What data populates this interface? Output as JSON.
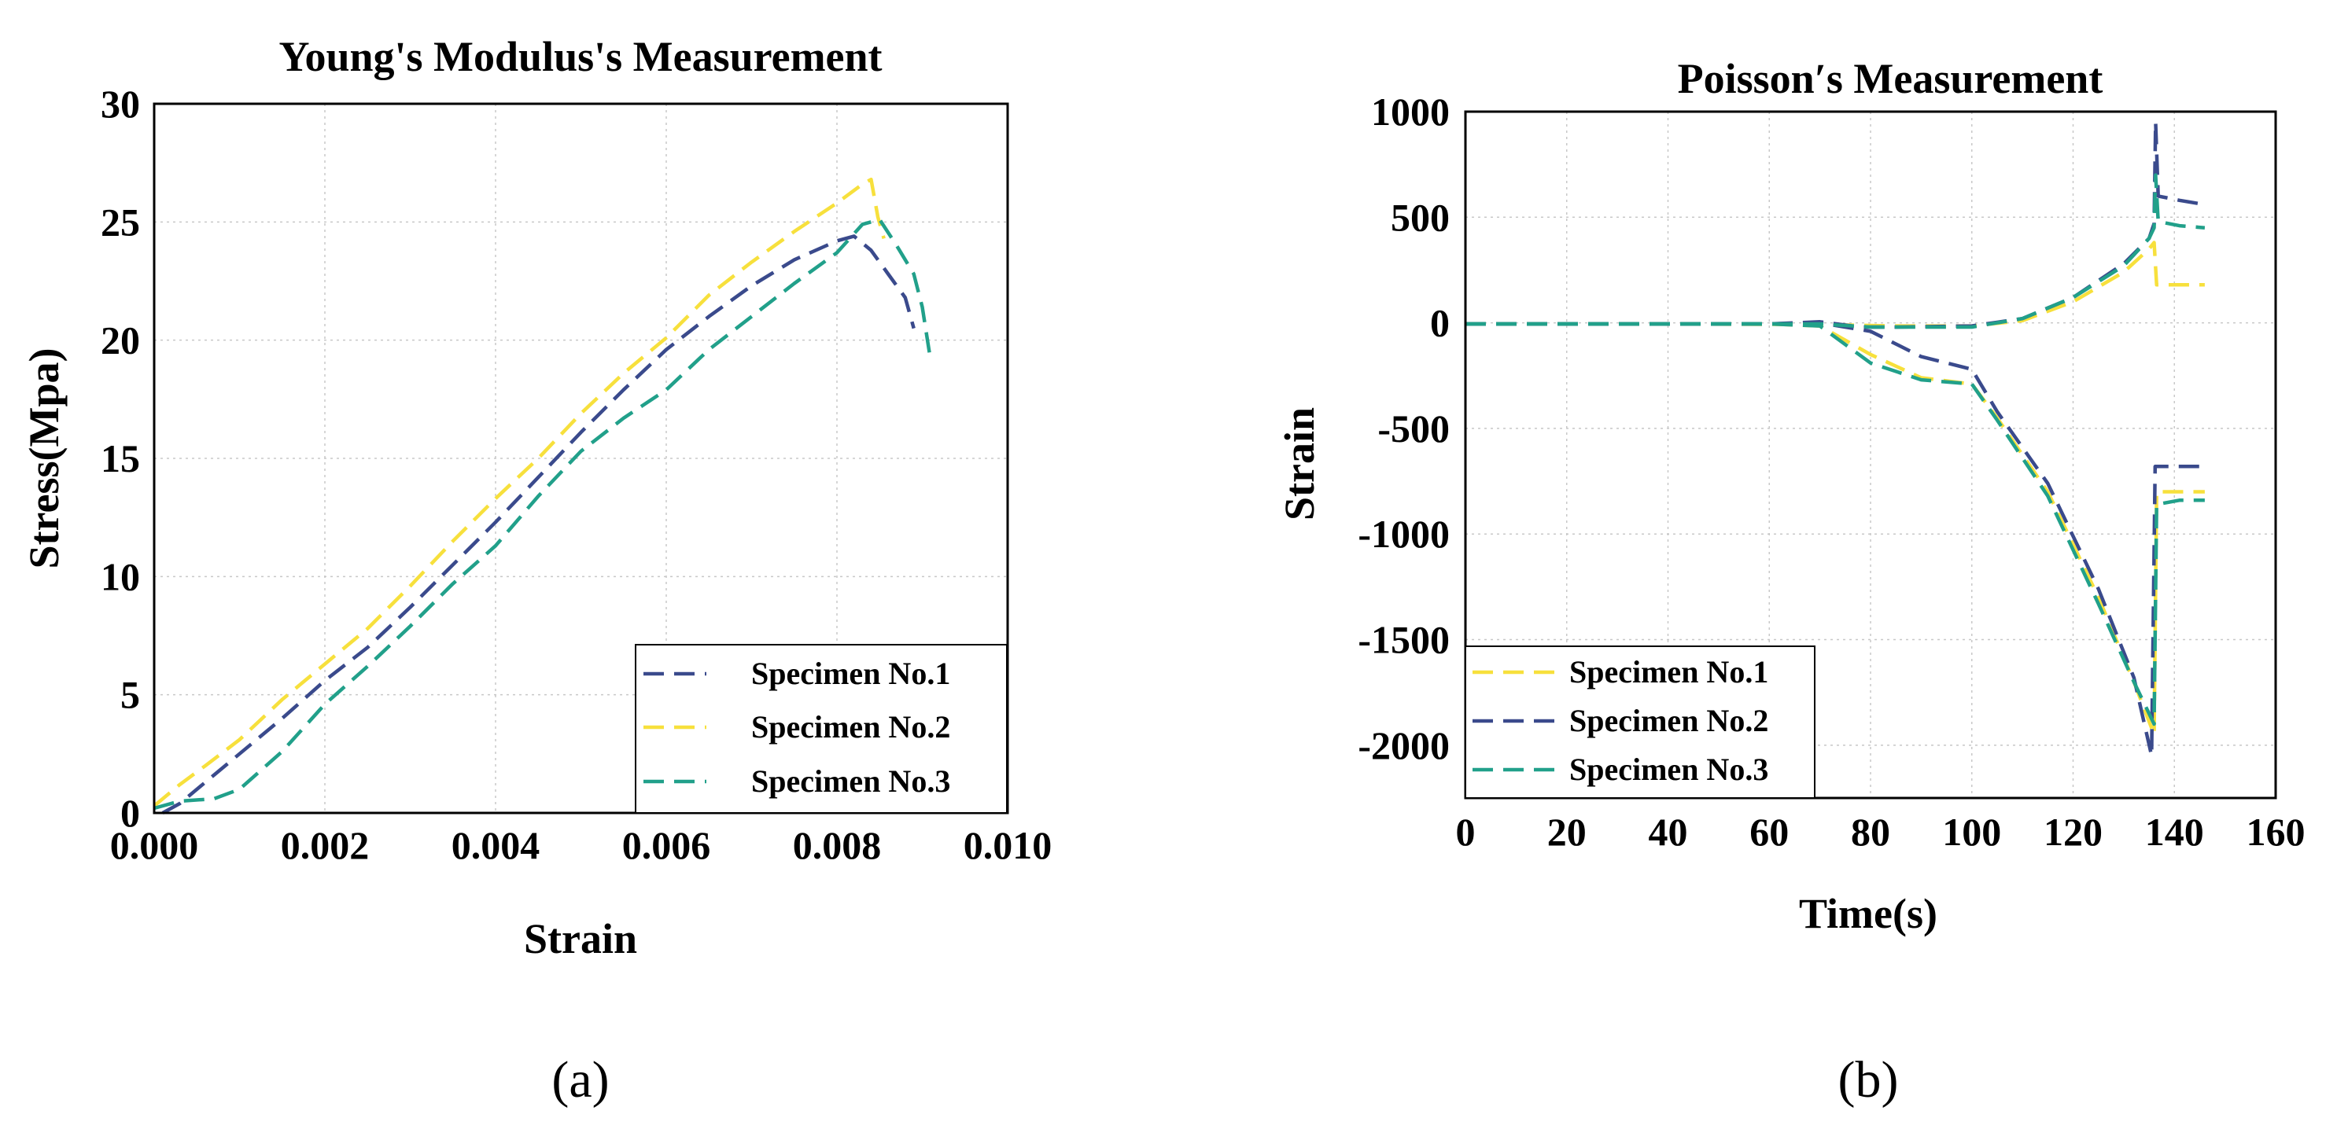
{
  "colors": {
    "navy": "#3a4a8c",
    "yellow": "#f7e03c",
    "teal": "#21a08a"
  },
  "panels": [
    {
      "label": "(a)"
    },
    {
      "label": "(b)"
    }
  ],
  "chart_data": [
    {
      "type": "line",
      "title": "Young's Modulus's Measurement",
      "xlabel": "Strain",
      "ylabel": "Stress(Mpa)",
      "xlim": [
        0,
        0.01
      ],
      "ylim": [
        0,
        30
      ],
      "xticks": [
        "0.000",
        "0.002",
        "0.004",
        "0.006",
        "0.008",
        "0.010"
      ],
      "yticks": [
        "0",
        "5",
        "10",
        "15",
        "20",
        "25",
        "30"
      ],
      "grid": true,
      "legend_position": "bottom-right",
      "series": [
        {
          "name": "Specimen No.1",
          "color": "#3a4a8c",
          "points": [
            [
              0.0001,
              0
            ],
            [
              0.0003,
              0.4
            ],
            [
              0.0006,
              1.3
            ],
            [
              0.001,
              2.5
            ],
            [
              0.0015,
              4.0
            ],
            [
              0.002,
              5.6
            ],
            [
              0.0025,
              7.0
            ],
            [
              0.003,
              8.7
            ],
            [
              0.0035,
              10.5
            ],
            [
              0.004,
              12.3
            ],
            [
              0.0045,
              14.2
            ],
            [
              0.005,
              16.1
            ],
            [
              0.0055,
              17.9
            ],
            [
              0.006,
              19.6
            ],
            [
              0.0065,
              21.0
            ],
            [
              0.007,
              22.3
            ],
            [
              0.0075,
              23.4
            ],
            [
              0.008,
              24.2
            ],
            [
              0.0082,
              24.4
            ],
            [
              0.0084,
              23.8
            ],
            [
              0.0086,
              22.8
            ],
            [
              0.0088,
              21.8
            ],
            [
              0.0089,
              20.5
            ]
          ]
        },
        {
          "name": "Specimen No.2",
          "color": "#f7e03c",
          "points": [
            [
              0,
              0.3
            ],
            [
              0.0003,
              1.2
            ],
            [
              0.0006,
              2.0
            ],
            [
              0.001,
              3.1
            ],
            [
              0.0015,
              4.8
            ],
            [
              0.002,
              6.3
            ],
            [
              0.0025,
              7.8
            ],
            [
              0.003,
              9.6
            ],
            [
              0.0035,
              11.5
            ],
            [
              0.004,
              13.3
            ],
            [
              0.0045,
              15.0
            ],
            [
              0.005,
              16.9
            ],
            [
              0.0055,
              18.6
            ],
            [
              0.006,
              20.1
            ],
            [
              0.0065,
              21.9
            ],
            [
              0.007,
              23.3
            ],
            [
              0.0075,
              24.6
            ],
            [
              0.008,
              25.8
            ],
            [
              0.0083,
              26.6
            ],
            [
              0.0084,
              26.8
            ],
            [
              0.00848,
              25.2
            ],
            [
              0.00855,
              24.3
            ]
          ]
        },
        {
          "name": "Specimen No.3",
          "color": "#21a08a",
          "points": [
            [
              0,
              0.2
            ],
            [
              0.0003,
              0.5
            ],
            [
              0.0007,
              0.6
            ],
            [
              0.001,
              1.0
            ],
            [
              0.0015,
              2.6
            ],
            [
              0.002,
              4.6
            ],
            [
              0.0025,
              6.2
            ],
            [
              0.003,
              7.9
            ],
            [
              0.0035,
              9.7
            ],
            [
              0.004,
              11.3
            ],
            [
              0.0045,
              13.4
            ],
            [
              0.005,
              15.3
            ],
            [
              0.0055,
              16.7
            ],
            [
              0.006,
              17.9
            ],
            [
              0.0065,
              19.6
            ],
            [
              0.007,
              21.0
            ],
            [
              0.0075,
              22.4
            ],
            [
              0.008,
              23.7
            ],
            [
              0.0083,
              24.9
            ],
            [
              0.0085,
              25.1
            ],
            [
              0.0087,
              24.0
            ],
            [
              0.0089,
              22.8
            ],
            [
              0.009,
              21.4
            ],
            [
              0.0091,
              19.1
            ]
          ]
        }
      ]
    },
    {
      "type": "line",
      "title": "Poisson′s Measurement",
      "xlabel": "Time(s)",
      "ylabel": "Strain",
      "xlim": [
        0,
        160
      ],
      "ylim": [
        -2250,
        1000
      ],
      "xticks": [
        "0",
        "20",
        "40",
        "60",
        "80",
        "100",
        "120",
        "140",
        "160"
      ],
      "yticks": [
        "-2000",
        "-1500",
        "-1000",
        "-500",
        "0",
        "500",
        "1000"
      ],
      "ytick_values": [
        -2000,
        -1500,
        -1000,
        -500,
        0,
        500,
        1000
      ],
      "grid": true,
      "legend_position": "bottom-left",
      "series": [
        {
          "name": "Specimen No.1",
          "color": "#f7e03c",
          "segments": [
            [
              [
                0,
                -5
              ],
              [
                40,
                -5
              ],
              [
                70,
                -8
              ],
              [
                85,
                -15
              ],
              [
                100,
                -15
              ],
              [
                110,
                10
              ],
              [
                120,
                100
              ],
              [
                130,
                240
              ],
              [
                135,
                350
              ],
              [
                136,
                380
              ],
              [
                136.5,
                180
              ],
              [
                146,
                180
              ]
            ],
            [
              [
                0,
                -5
              ],
              [
                60,
                -5
              ],
              [
                70,
                -15
              ],
              [
                80,
                -150
              ],
              [
                90,
                -260
              ],
              [
                100,
                -290
              ],
              [
                105,
                -450
              ],
              [
                115,
                -800
              ],
              [
                125,
                -1300
              ],
              [
                132,
                -1700
              ],
              [
                136,
                -1950
              ],
              [
                136.5,
                -800
              ],
              [
                146,
                -800
              ]
            ]
          ]
        },
        {
          "name": "Specimen No.2",
          "color": "#3a4a8c",
          "segments": [
            [
              [
                0,
                -5
              ],
              [
                60,
                -5
              ],
              [
                70,
                5
              ],
              [
                78,
                -20
              ],
              [
                85,
                -20
              ],
              [
                100,
                -15
              ],
              [
                110,
                20
              ],
              [
                120,
                120
              ],
              [
                130,
                280
              ],
              [
                135,
                400
              ],
              [
                136,
                470
              ],
              [
                136.3,
                950
              ],
              [
                136.8,
                600
              ],
              [
                141,
                580
              ],
              [
                146,
                560
              ]
            ],
            [
              [
                0,
                -5
              ],
              [
                60,
                -5
              ],
              [
                70,
                0
              ],
              [
                80,
                -40
              ],
              [
                90,
                -160
              ],
              [
                100,
                -220
              ],
              [
                105,
                -420
              ],
              [
                115,
                -760
              ],
              [
                125,
                -1260
              ],
              [
                132,
                -1680
              ],
              [
                135.5,
                -2050
              ],
              [
                136.2,
                -680
              ],
              [
                146,
                -680
              ]
            ]
          ]
        },
        {
          "name": "Specimen No.3",
          "color": "#21a08a",
          "segments": [
            [
              [
                0,
                -5
              ],
              [
                60,
                -5
              ],
              [
                70,
                -5
              ],
              [
                80,
                -20
              ],
              [
                100,
                -20
              ],
              [
                110,
                20
              ],
              [
                120,
                120
              ],
              [
                130,
                270
              ],
              [
                135,
                400
              ],
              [
                136,
                450
              ],
              [
                136.3,
                700
              ],
              [
                136.8,
                480
              ],
              [
                141,
                460
              ],
              [
                146,
                450
              ]
            ],
            [
              [
                0,
                -5
              ],
              [
                60,
                -5
              ],
              [
                70,
                -15
              ],
              [
                80,
                -190
              ],
              [
                90,
                -270
              ],
              [
                100,
                -290
              ],
              [
                105,
                -460
              ],
              [
                115,
                -820
              ],
              [
                125,
                -1330
              ],
              [
                132,
                -1700
              ],
              [
                136,
                -1900
              ],
              [
                136.5,
                -860
              ],
              [
                141,
                -840
              ],
              [
                146,
                -840
              ]
            ]
          ]
        }
      ]
    }
  ]
}
